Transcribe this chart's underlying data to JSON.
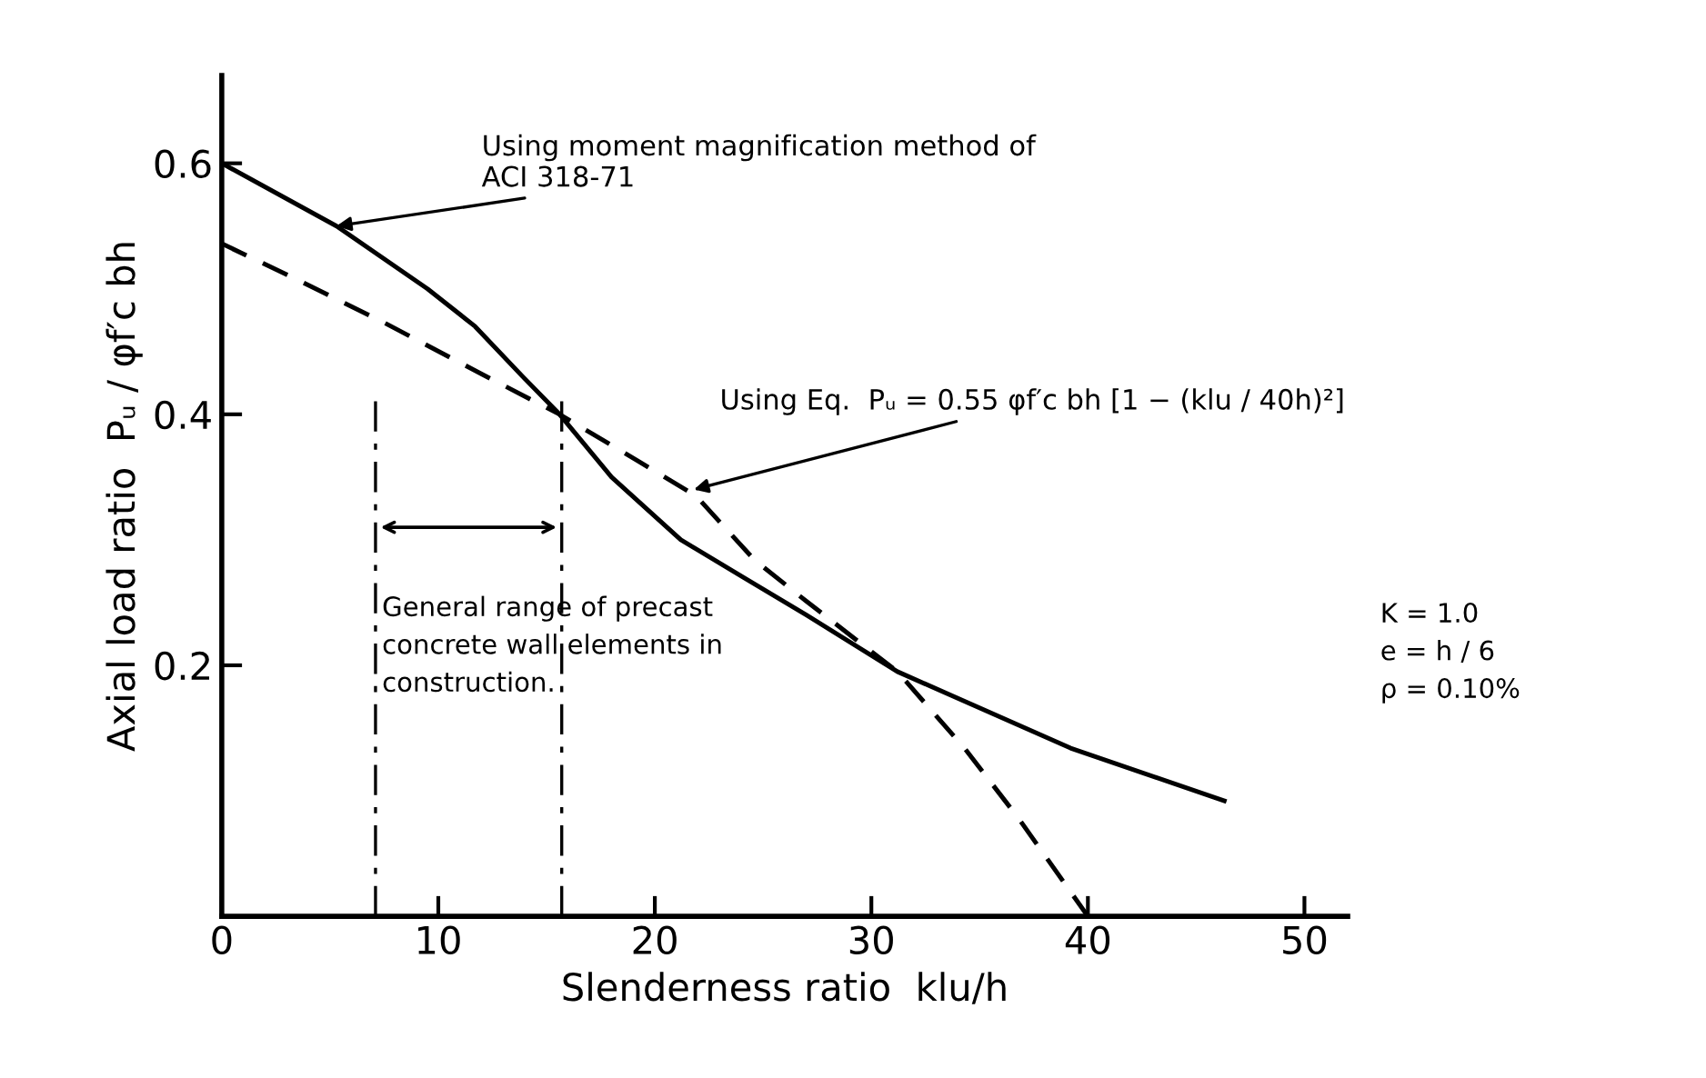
{
  "chart_data": {
    "type": "line",
    "xlabel": "Slenderness ratio  klu/h",
    "ylabel": "Axial load ratio  Pᵤ / φf′c bh",
    "xlim": [
      0,
      52
    ],
    "ylim": [
      0,
      0.67
    ],
    "xticks": [
      0,
      10,
      20,
      30,
      40,
      50
    ],
    "yticks": [
      0.2,
      0.4,
      0.6
    ],
    "grid": false,
    "legend": false,
    "marker": "none",
    "series": [
      {
        "color": "#000000",
        "line_style": "solid",
        "x": [
          0,
          5.3,
          9.5,
          11.7,
          13.9,
          15.6,
          18,
          21.2,
          24.1,
          27,
          31.2,
          39.2,
          46.3
        ],
        "values": [
          0.6,
          0.55,
          0.5,
          0.47,
          0.43,
          0.4,
          0.35,
          0.3,
          0.27,
          0.24,
          0.195,
          0.134,
          0.092
        ]
      },
      {
        "color": "#000000",
        "line_style": "dashed",
        "x": [
          0,
          3.4,
          7.5,
          11.9,
          15.6,
          19.2,
          21.9,
          24.6,
          27,
          31.2,
          34.3,
          36.8,
          40
        ],
        "values": [
          0.536,
          0.508,
          0.473,
          0.433,
          0.4,
          0.363,
          0.335,
          0.284,
          0.251,
          0.195,
          0.134,
          0.078,
          0
        ]
      }
    ],
    "ref_lines": [
      {
        "axis": "x",
        "value": 7.1,
        "line_style": "dashdot",
        "color": "#000000"
      },
      {
        "axis": "x",
        "value": 15.7,
        "line_style": "dashdot",
        "color": "#000000"
      }
    ],
    "annotations": [
      {
        "text": "Using moment magnification method of\nACI 318-71",
        "x": 5.3,
        "y": 0.55
      },
      {
        "text": "Using Eq.  Pᵤ = 0.55 φf′c bh [1 − (klu / 40h)²]",
        "x": 21.8,
        "y": 0.34
      },
      "General range of precast\nconcrete wall elements in\nconstruction.",
      "K = 1.0\ne = h / 6\nρ = 0.10%"
    ]
  }
}
